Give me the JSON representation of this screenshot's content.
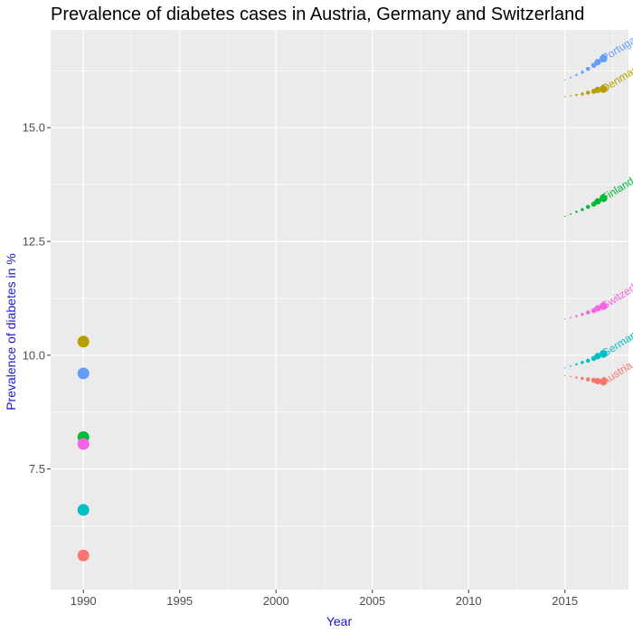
{
  "chart_data": {
    "type": "scatter",
    "title": "Prevalence of diabetes cases in Austria, Germany and Switzerland",
    "xlabel": "Year",
    "ylabel": "Prevalence of diabetes in %",
    "xlim": [
      1988.3,
      2018.3
    ],
    "ylim": [
      4.85,
      17.15
    ],
    "x_ticks": [
      1990,
      1995,
      2000,
      2005,
      2010,
      2015
    ],
    "x_tick_labels": [
      "1990",
      "1995",
      "2000",
      "2005",
      "2010",
      "2015"
    ],
    "y_ticks": [
      7.5,
      10.0,
      12.5,
      15.0
    ],
    "y_tick_labels": [
      "7.5",
      "10.0",
      "12.5",
      "15.0"
    ],
    "grid": true,
    "legend": "none",
    "background_color": "#ebebeb",
    "axis_title_color": "#1a1acd",
    "series": [
      {
        "name": "Austria",
        "color": "#f8766d",
        "start": {
          "x": 1990,
          "y": 5.6
        },
        "trend_x": [
          2015.0,
          2015.3,
          2015.6,
          2015.9,
          2016.2,
          2016.5,
          2016.7,
          2017.0
        ],
        "trend_y": [
          9.55,
          9.53,
          9.51,
          9.49,
          9.47,
          9.45,
          9.43,
          9.42
        ],
        "label": "Austria"
      },
      {
        "name": "Denmark",
        "color": "#b79f00",
        "start": {
          "x": 1990,
          "y": 10.3
        },
        "trend_x": [
          2015.0,
          2015.3,
          2015.6,
          2015.9,
          2016.2,
          2016.5,
          2016.7,
          2017.0
        ],
        "trend_y": [
          15.68,
          15.7,
          15.72,
          15.74,
          15.77,
          15.8,
          15.83,
          15.85
        ],
        "label": "Denmark"
      },
      {
        "name": "Finland",
        "color": "#00ba38",
        "start": {
          "x": 1990,
          "y": 8.2
        },
        "trend_x": [
          2015.0,
          2015.3,
          2015.6,
          2015.9,
          2016.2,
          2016.5,
          2016.7,
          2017.0
        ],
        "trend_y": [
          13.05,
          13.1,
          13.15,
          13.2,
          13.26,
          13.32,
          13.38,
          13.45
        ],
        "label": "Finland"
      },
      {
        "name": "Germany",
        "color": "#00bfc4",
        "start": {
          "x": 1990,
          "y": 6.6
        },
        "trend_x": [
          2015.0,
          2015.3,
          2015.6,
          2015.9,
          2016.2,
          2016.5,
          2016.7,
          2017.0
        ],
        "trend_y": [
          9.72,
          9.76,
          9.8,
          9.84,
          9.88,
          9.93,
          9.98,
          10.03
        ],
        "label": "Germany"
      },
      {
        "name": "Portugal",
        "color": "#619cff",
        "start": {
          "x": 1990,
          "y": 9.6
        },
        "trend_x": [
          2015.0,
          2015.3,
          2015.6,
          2015.9,
          2016.2,
          2016.5,
          2016.7,
          2017.0
        ],
        "trend_y": [
          16.05,
          16.1,
          16.16,
          16.22,
          16.29,
          16.37,
          16.44,
          16.52
        ],
        "label": "Portugal"
      },
      {
        "name": "Switzerland",
        "color": "#f564e3",
        "start": {
          "x": 1990,
          "y": 8.05
        },
        "trend_x": [
          2015.0,
          2015.3,
          2015.6,
          2015.9,
          2016.2,
          2016.5,
          2016.7,
          2017.0
        ],
        "trend_y": [
          10.8,
          10.83,
          10.86,
          10.9,
          10.94,
          10.98,
          11.03,
          11.08
        ],
        "label": "Switzerland"
      }
    ]
  }
}
